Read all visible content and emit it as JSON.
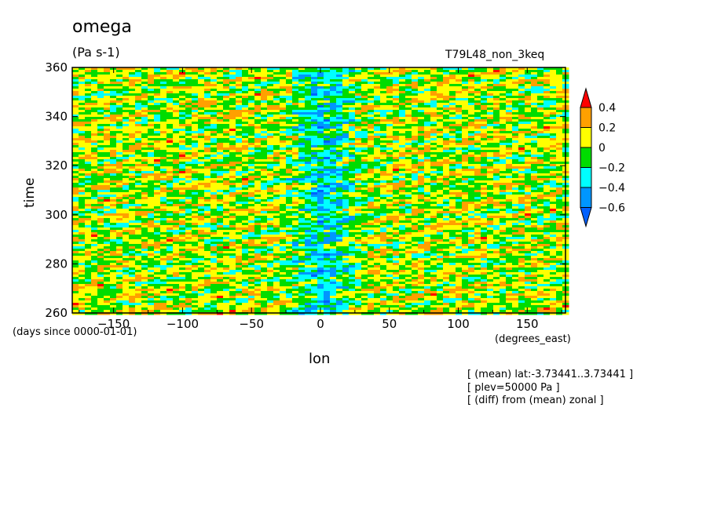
{
  "header": {
    "title": "omega",
    "units": "(Pa s-1)",
    "run_name": "T79L48_non_3keq"
  },
  "notes": [
    "[ (mean) lat:-3.73441..3.73441 ]",
    "[ plev=50000 Pa ]",
    "[ (diff) from (mean) zonal ]"
  ],
  "chart_data": {
    "type": "heatmap",
    "title": "omega",
    "subtitle": "(Pa s-1)",
    "xlabel": "lon",
    "xunits": "(degrees_east)",
    "ylabel": "time",
    "yunits": "(days since 0000-01-01)",
    "xlim": [
      -180,
      177.75
    ],
    "ylim": [
      260,
      360
    ],
    "x_ticks": [
      -150,
      -100,
      -50,
      0,
      50,
      100,
      150
    ],
    "y_ticks": [
      260,
      280,
      300,
      320,
      340,
      360
    ],
    "x_tick_labels": [
      "−150",
      "−100",
      "−50",
      "0",
      "50",
      "100",
      "150"
    ],
    "y_tick_labels": [
      "260",
      "280",
      "300",
      "320",
      "340",
      "360"
    ],
    "colorbar": {
      "levels": [
        -0.6,
        -0.4,
        -0.2,
        0,
        0.2,
        0.4
      ],
      "level_labels": [
        "−0.6",
        "−0.4",
        "−0.2",
        "0",
        "0.2",
        "0.4"
      ],
      "colors": [
        "#0060ff",
        "#0096ff",
        "#00ffff",
        "#00dc00",
        "#ffff00",
        "#ffa000",
        "#ff0000"
      ],
      "extend": "both"
    },
    "pattern_note": "negative (upward) anomalies concentrated near lon 0; mostly yellow/green elsewhere"
  }
}
